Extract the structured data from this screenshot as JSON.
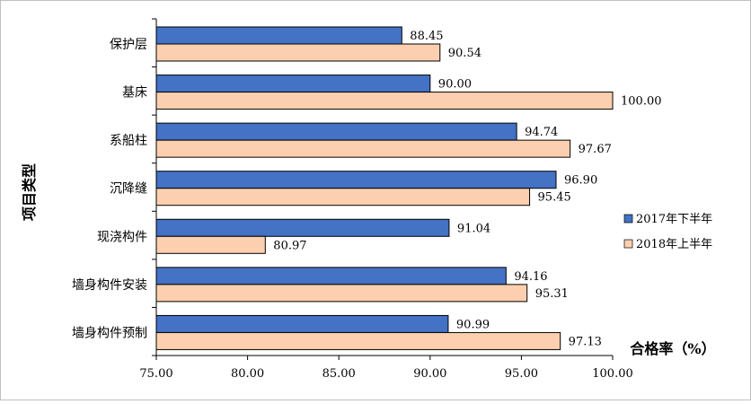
{
  "chart_data": {
    "type": "bar",
    "orientation": "horizontal",
    "ylabel": "项目类型",
    "xlabel": "合格率（%）",
    "xlim": [
      75,
      100
    ],
    "xticks": [
      "75.00",
      "80.00",
      "85.00",
      "90.00",
      "95.00",
      "100.00"
    ],
    "categories": [
      "保护层",
      "基床",
      "系船柱",
      "沉降缝",
      "现浇构件",
      "墙身构件安装",
      "墙身构件预制"
    ],
    "series": [
      {
        "name": "2017年下半年",
        "color": "#4472c4",
        "values": [
          88.45,
          90.0,
          94.74,
          96.9,
          91.04,
          94.16,
          90.99
        ],
        "labels": [
          "88.45",
          "90.00",
          "94.74",
          "96.90",
          "91.04",
          "94.16",
          "90.99"
        ]
      },
      {
        "name": "2018年上半年",
        "color": "#fbcfaf",
        "values": [
          90.54,
          100.0,
          97.67,
          95.45,
          80.97,
          95.31,
          97.13
        ],
        "labels": [
          "90.54",
          "100.00",
          "97.67",
          "95.45",
          "80.97",
          "95.31",
          "97.13"
        ]
      }
    ],
    "legend_position": "right",
    "grid": false
  }
}
